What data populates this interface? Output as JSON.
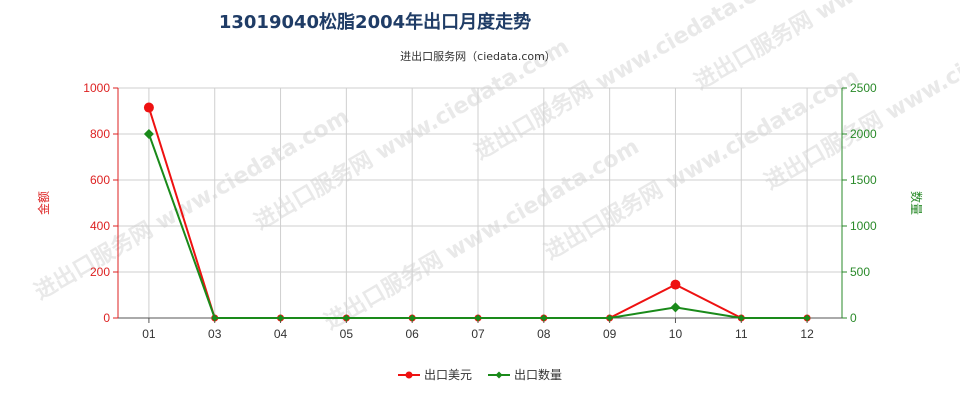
{
  "chart_data": {
    "type": "line",
    "title": "13019040松脂2004年出口月度走势",
    "subtitle": "进出口服务网（ciedata.com）",
    "categories": [
      "01",
      "03",
      "04",
      "05",
      "06",
      "07",
      "08",
      "09",
      "10",
      "11",
      "12"
    ],
    "y_left": {
      "label": "金额",
      "ylim": [
        0,
        1000
      ],
      "ticks": [
        0,
        200,
        400,
        600,
        800,
        1000
      ],
      "color": "#dd2222"
    },
    "y_right": {
      "label": "数量",
      "ylim": [
        0,
        2500
      ],
      "ticks": [
        0,
        500,
        1000,
        1500,
        2000,
        2500
      ],
      "color": "#2a8a2a"
    },
    "series": [
      {
        "name": "出口美元",
        "axis": "left",
        "color": "#ee1111",
        "marker": "circle",
        "values": [
          915,
          0,
          0,
          0,
          0,
          0,
          0,
          0,
          145,
          0,
          0
        ]
      },
      {
        "name": "出口数量",
        "axis": "right",
        "color": "#1a8a1a",
        "marker": "diamond",
        "values": [
          2000,
          0,
          0,
          0,
          0,
          0,
          0,
          0,
          115,
          0,
          0
        ]
      }
    ],
    "grid": true,
    "legend_position": "bottom-center",
    "watermark": "进出口服务网 www.ciedata.com"
  }
}
